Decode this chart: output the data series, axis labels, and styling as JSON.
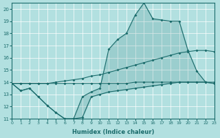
{
  "xlabel": "Humidex (Indice chaleur)",
  "bg_color": "#b2e0e0",
  "grid_color": "#ffffff",
  "line_color": "#1a6b6b",
  "fill_color": "#1a6b6b",
  "xlim": [
    0,
    23
  ],
  "ylim": [
    11,
    20.5
  ],
  "yticks": [
    11,
    12,
    13,
    14,
    15,
    16,
    17,
    18,
    19,
    20
  ],
  "xticks": [
    0,
    1,
    2,
    3,
    4,
    5,
    6,
    7,
    8,
    9,
    10,
    11,
    12,
    13,
    14,
    15,
    16,
    17,
    18,
    19,
    20,
    21,
    22,
    23
  ],
  "x": [
    0,
    1,
    2,
    3,
    4,
    5,
    6,
    7,
    8,
    9,
    10,
    11,
    12,
    13,
    14,
    15,
    16,
    17,
    18,
    19,
    20,
    21,
    22,
    23
  ],
  "y_top": [
    13.9,
    13.3,
    13.5,
    12.8,
    12.1,
    11.5,
    11.0,
    11.0,
    12.8,
    13.2,
    13.5,
    16.7,
    17.5,
    18.0,
    19.5,
    20.5,
    19.2,
    19.1,
    19.0,
    19.0,
    16.6,
    14.9,
    14.0,
    13.9
  ],
  "y_upper_linear": [
    13.9,
    13.9,
    13.9,
    13.9,
    13.9,
    14.0,
    14.1,
    14.2,
    14.3,
    14.5,
    14.6,
    14.8,
    15.0,
    15.2,
    15.4,
    15.6,
    15.8,
    16.0,
    16.2,
    16.4,
    16.5,
    16.6,
    16.6,
    16.5
  ],
  "y_lower_linear": [
    13.9,
    13.9,
    13.9,
    13.9,
    13.9,
    13.9,
    13.9,
    13.9,
    13.9,
    13.9,
    13.9,
    13.9,
    13.9,
    13.9,
    14.0,
    14.0,
    14.0,
    14.0,
    14.0,
    14.0,
    14.0,
    14.0,
    14.0,
    14.0
  ],
  "y_bottom": [
    13.9,
    13.3,
    13.5,
    12.8,
    12.1,
    11.5,
    11.0,
    11.0,
    11.1,
    12.8,
    13.0,
    13.2,
    13.3,
    13.4,
    13.5,
    13.6,
    13.7,
    13.8,
    13.9,
    14.0,
    14.0,
    14.0,
    14.0,
    13.9
  ]
}
